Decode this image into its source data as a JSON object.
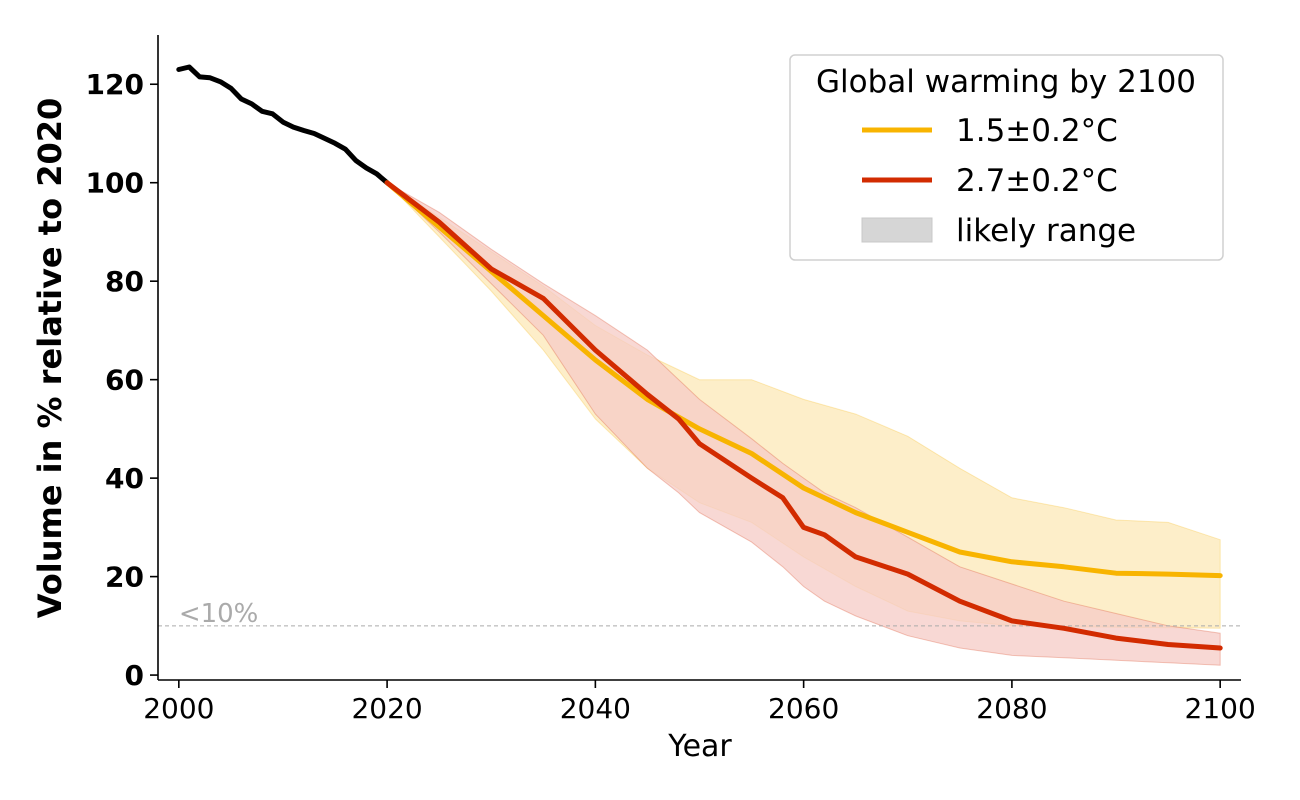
{
  "chart_data": {
    "type": "line",
    "xlabel": "Year",
    "ylabel": "Volume in % relative to 2020",
    "xlim": [
      1998,
      2102
    ],
    "ylim": [
      -1,
      130
    ],
    "x_ticks": [
      2000,
      2020,
      2040,
      2060,
      2080,
      2100
    ],
    "y_ticks": [
      0,
      20,
      40,
      60,
      80,
      100,
      120
    ],
    "legend": {
      "title": "Global warming by 2100",
      "placement": "top-right",
      "entries": [
        {
          "label": "1.5±0.2°C",
          "color": "#F8B400",
          "kind": "line"
        },
        {
          "label": "2.7±0.2°C",
          "color": "#D22B00",
          "kind": "line"
        },
        {
          "label": "likely range",
          "color": "#D6D6D6",
          "kind": "patch"
        }
      ]
    },
    "threshold": {
      "value": 10,
      "label": "<10%",
      "color": "#AAAAAA"
    },
    "historical": {
      "name": "historical",
      "color": "#000000",
      "x": [
        2000,
        2001,
        2002,
        2003,
        2004,
        2005,
        2006,
        2007,
        2008,
        2009,
        2010,
        2011,
        2012,
        2013,
        2014,
        2015,
        2016,
        2017,
        2018,
        2019,
        2020
      ],
      "y": [
        123,
        123.5,
        121.5,
        121.3,
        120.5,
        119.2,
        117,
        116,
        114.5,
        114,
        112.3,
        111.3,
        110.6,
        110,
        109,
        108,
        106.8,
        104.5,
        103,
        101.8,
        100
      ]
    },
    "series": [
      {
        "name": "1.5±0.2°C",
        "color": "#F8B400",
        "band_color": "#FDEDC6",
        "x": [
          2020,
          2025,
          2030,
          2035,
          2040,
          2045,
          2050,
          2055,
          2060,
          2065,
          2070,
          2075,
          2080,
          2085,
          2090,
          2095,
          2100
        ],
        "y": [
          100,
          91,
          82,
          73,
          64,
          56,
          50,
          45,
          38,
          33,
          29,
          25,
          23,
          22,
          20.7,
          20.5,
          20.2
        ],
        "lower": [
          100,
          89,
          78,
          66,
          52,
          42,
          35,
          31,
          24,
          18,
          13,
          11,
          10,
          9.8,
          9.7,
          9.6,
          9.5
        ],
        "upper": [
          100,
          93,
          86,
          79,
          71,
          65,
          60,
          60,
          56,
          53,
          48.5,
          42,
          36,
          34,
          31.5,
          31,
          27.5
        ]
      },
      {
        "name": "2.7±0.2°C",
        "color": "#D22B00",
        "band_color": "#F6CBC5",
        "x": [
          2020,
          2025,
          2030,
          2035,
          2040,
          2045,
          2048,
          2050,
          2055,
          2058,
          2060,
          2062,
          2065,
          2070,
          2075,
          2080,
          2085,
          2090,
          2095,
          2100
        ],
        "y": [
          100,
          92,
          82.5,
          76.5,
          66,
          57,
          52,
          47,
          40,
          36,
          30,
          28.5,
          24,
          20.5,
          15,
          11,
          9.5,
          7.5,
          6.2,
          5.5
        ],
        "lower": [
          100,
          90,
          79.5,
          69,
          53,
          42,
          37,
          33,
          27,
          22,
          18,
          15,
          12,
          8,
          5.5,
          4,
          3.5,
          3,
          2.5,
          2
        ],
        "upper": [
          100,
          94,
          86.5,
          79.5,
          73,
          66,
          60,
          56,
          48,
          43,
          40,
          37,
          34,
          28,
          22,
          18.5,
          15,
          12.5,
          10,
          8.5
        ]
      }
    ]
  }
}
